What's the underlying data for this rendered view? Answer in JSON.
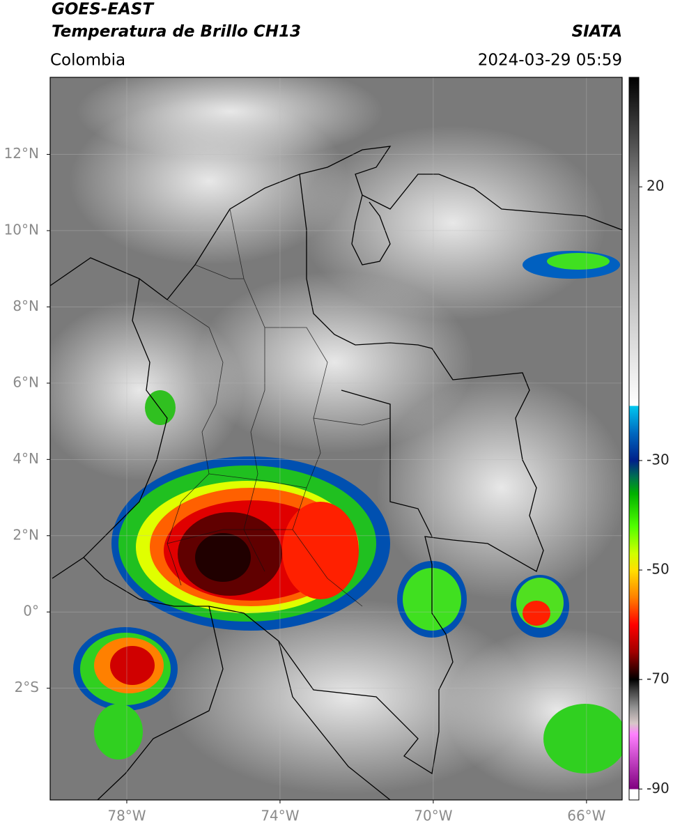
{
  "header": {
    "title": "GOES-EAST",
    "subtitle": "Temperatura de Brillo CH13",
    "region": "Colombia",
    "source": "SIATA",
    "timestamp": "2024-03-29 05:59"
  },
  "map": {
    "lonlim": [
      -80,
      -65.07
    ],
    "latlim": [
      -4.93,
      14.02
    ],
    "lonticks": [
      {
        "value": -78,
        "label": "78°W"
      },
      {
        "value": -74,
        "label": "74°W"
      },
      {
        "value": -70,
        "label": "70°W"
      },
      {
        "value": -66,
        "label": "66°W"
      }
    ],
    "latticks": [
      {
        "value": 12,
        "label": "12°N"
      },
      {
        "value": 10,
        "label": "10°N"
      },
      {
        "value": 8,
        "label": "8°N"
      },
      {
        "value": 6,
        "label": "6°N"
      },
      {
        "value": 4,
        "label": "4°N"
      },
      {
        "value": 2,
        "label": "2°N"
      },
      {
        "value": 0,
        "label": "0°"
      },
      {
        "value": -2,
        "label": "2°S"
      }
    ],
    "grid": true
  },
  "colorbar": {
    "lim": [
      -92,
      40
    ],
    "ticks": [
      20,
      -30,
      -50,
      -70,
      -90
    ],
    "stops": [
      {
        "value": 40,
        "color": "#000000"
      },
      {
        "value": 20,
        "color": "#858585"
      },
      {
        "value": -20,
        "color": "#ffffff"
      },
      {
        "value": -20,
        "color": "#00c8f0"
      },
      {
        "value": -25,
        "color": "#0068c0"
      },
      {
        "value": -30,
        "color": "#00208a"
      },
      {
        "value": -33,
        "color": "#007050"
      },
      {
        "value": -36,
        "color": "#00b000"
      },
      {
        "value": -42,
        "color": "#50ff00"
      },
      {
        "value": -47,
        "color": "#d0ff00"
      },
      {
        "value": -50,
        "color": "#ffe000"
      },
      {
        "value": -55,
        "color": "#ff8000"
      },
      {
        "value": -60,
        "color": "#ff0000"
      },
      {
        "value": -65,
        "color": "#a00000"
      },
      {
        "value": -68,
        "color": "#400000"
      },
      {
        "value": -70,
        "color": "#000000"
      },
      {
        "value": -72,
        "color": "#404040"
      },
      {
        "value": -75,
        "color": "#909090"
      },
      {
        "value": -78,
        "color": "#d8c8c8"
      },
      {
        "value": -80,
        "color": "#ff80ff"
      },
      {
        "value": -85,
        "color": "#c040c0"
      },
      {
        "value": -90,
        "color": "#800080"
      },
      {
        "value": -90,
        "color": "#ffffff"
      },
      {
        "value": -92,
        "color": "#ffffff"
      }
    ]
  }
}
